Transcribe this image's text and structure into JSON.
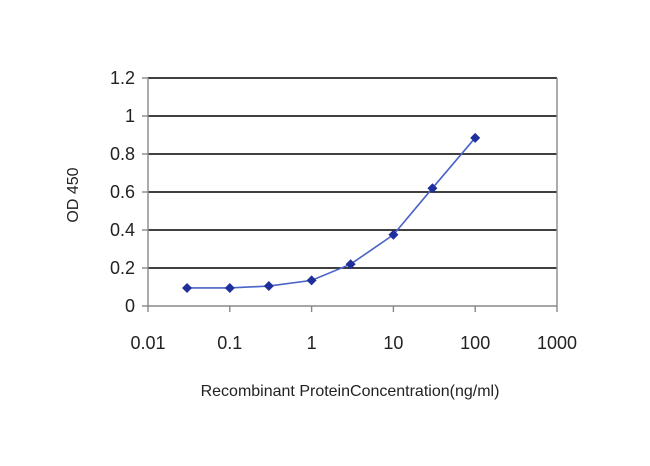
{
  "chart_data": {
    "type": "line",
    "title": "",
    "xlabel": "Recombinant ProteinConcentration(ng/ml)",
    "ylabel": "OD 450",
    "xscale": "log",
    "xlim": [
      0.01,
      1000
    ],
    "ylim": [
      0,
      1.2
    ],
    "xticks": [
      "0.01",
      "0.1",
      "1",
      "10",
      "100",
      "1000"
    ],
    "yticks": [
      "0",
      "0.2",
      "0.4",
      "0.6",
      "0.8",
      "1",
      "1.2"
    ],
    "grid": "horizontal",
    "legend": "none",
    "series": [
      {
        "x": [
          0.03,
          0.1,
          0.3,
          1,
          3,
          10,
          30,
          100
        ],
        "y": [
          0.095,
          0.095,
          0.105,
          0.135,
          0.22,
          0.375,
          0.62,
          0.885
        ],
        "color": "#1f2f9c",
        "marker": "diamond"
      }
    ],
    "colors": {
      "line": "#4a63c7",
      "marker": "#1f2f9c",
      "grid": "#000000",
      "axis": "#888888"
    }
  }
}
